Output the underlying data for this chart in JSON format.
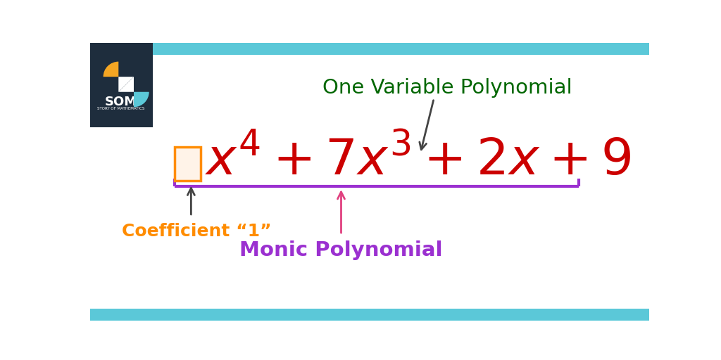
{
  "bg_color": "#ffffff",
  "top_bar_color": "#5bc8d8",
  "bottom_bar_color": "#5bc8d8",
  "header_bg_color": "#1e2d3d",
  "polynomial_color": "#cc0000",
  "brace_color": "#9b30d0",
  "coeff_label_color": "#ff8c00",
  "coeff_arrow_color": "#444444",
  "monic_label_color": "#9b30d0",
  "monic_arrow_color": "#e0407f",
  "one_var_label_color": "#006600",
  "one_var_arrow_color": "#444444",
  "box_facecolor": "#fff3e8",
  "box_edgecolor": "#ff8c00",
  "title": "One Variable Polynomial",
  "coeff_label": "Coefficient “1”",
  "monic_label": "Monic Polynomial"
}
